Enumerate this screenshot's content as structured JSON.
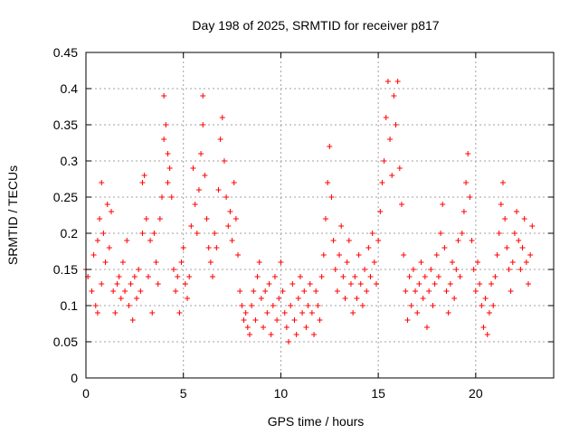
{
  "chart_data": {
    "type": "scatter",
    "title": "Day 198 of 2025, SRMTID for receiver p817",
    "xlabel": "GPS time / hours",
    "ylabel": "SRMTID / TECUs",
    "xlim": [
      0,
      24
    ],
    "ylim": [
      0,
      0.45
    ],
    "xticks": [
      0,
      5,
      10,
      15,
      20
    ],
    "yticks": [
      0,
      0.05,
      0.1,
      0.15,
      0.2,
      0.25,
      0.3,
      0.35,
      0.4,
      0.45
    ],
    "xtick_labels": [
      "0",
      "5",
      "10",
      "15",
      "20"
    ],
    "ytick_labels": [
      "0",
      "0.05",
      "0.1",
      "0.15",
      "0.2",
      "0.25",
      "0.3",
      "0.35",
      "0.4",
      "0.45"
    ],
    "grid": true,
    "marker": "+",
    "color": "#ff0000",
    "series": [
      {
        "name": "SRMTID",
        "points": [
          [
            0.0,
            0.15
          ],
          [
            0.1,
            0.14
          ],
          [
            0.3,
            0.12
          ],
          [
            0.4,
            0.17
          ],
          [
            0.5,
            0.1
          ],
          [
            0.6,
            0.19
          ],
          [
            0.6,
            0.09
          ],
          [
            0.7,
            0.22
          ],
          [
            0.8,
            0.27
          ],
          [
            0.8,
            0.13
          ],
          [
            0.9,
            0.2
          ],
          [
            1.0,
            0.16
          ],
          [
            1.1,
            0.24
          ],
          [
            1.2,
            0.18
          ],
          [
            1.3,
            0.23
          ],
          [
            1.4,
            0.12
          ],
          [
            1.5,
            0.09
          ],
          [
            1.6,
            0.13
          ],
          [
            1.7,
            0.14
          ],
          [
            1.8,
            0.11
          ],
          [
            1.9,
            0.16
          ],
          [
            2.0,
            0.12
          ],
          [
            2.1,
            0.19
          ],
          [
            2.2,
            0.1
          ],
          [
            2.3,
            0.13
          ],
          [
            2.4,
            0.08
          ],
          [
            2.5,
            0.14
          ],
          [
            2.6,
            0.11
          ],
          [
            2.7,
            0.15
          ],
          [
            2.8,
            0.12
          ],
          [
            2.9,
            0.2
          ],
          [
            2.9,
            0.27
          ],
          [
            3.0,
            0.28
          ],
          [
            3.1,
            0.22
          ],
          [
            3.2,
            0.14
          ],
          [
            3.3,
            0.19
          ],
          [
            3.4,
            0.09
          ],
          [
            3.5,
            0.2
          ],
          [
            3.6,
            0.16
          ],
          [
            3.7,
            0.13
          ],
          [
            3.8,
            0.22
          ],
          [
            3.9,
            0.25
          ],
          [
            4.0,
            0.33
          ],
          [
            4.0,
            0.39
          ],
          [
            4.1,
            0.35
          ],
          [
            4.2,
            0.27
          ],
          [
            4.2,
            0.31
          ],
          [
            4.3,
            0.29
          ],
          [
            4.4,
            0.25
          ],
          [
            4.5,
            0.15
          ],
          [
            4.6,
            0.12
          ],
          [
            4.7,
            0.14
          ],
          [
            4.8,
            0.09
          ],
          [
            4.9,
            0.16
          ],
          [
            5.0,
            0.18
          ],
          [
            5.1,
            0.13
          ],
          [
            5.2,
            0.11
          ],
          [
            5.3,
            0.14
          ],
          [
            5.4,
            0.21
          ],
          [
            5.5,
            0.29
          ],
          [
            5.6,
            0.24
          ],
          [
            5.7,
            0.2
          ],
          [
            5.8,
            0.26
          ],
          [
            5.9,
            0.31
          ],
          [
            6.0,
            0.35
          ],
          [
            6.0,
            0.39
          ],
          [
            6.1,
            0.28
          ],
          [
            6.2,
            0.22
          ],
          [
            6.3,
            0.18
          ],
          [
            6.4,
            0.16
          ],
          [
            6.5,
            0.14
          ],
          [
            6.6,
            0.2
          ],
          [
            6.7,
            0.18
          ],
          [
            6.8,
            0.26
          ],
          [
            6.9,
            0.33
          ],
          [
            7.0,
            0.36
          ],
          [
            7.1,
            0.3
          ],
          [
            7.2,
            0.25
          ],
          [
            7.3,
            0.21
          ],
          [
            7.4,
            0.23
          ],
          [
            7.5,
            0.19
          ],
          [
            7.6,
            0.27
          ],
          [
            7.7,
            0.22
          ],
          [
            7.8,
            0.17
          ],
          [
            7.9,
            0.12
          ],
          [
            8.0,
            0.1
          ],
          [
            8.1,
            0.08
          ],
          [
            8.2,
            0.09
          ],
          [
            8.3,
            0.07
          ],
          [
            8.4,
            0.06
          ],
          [
            8.5,
            0.1
          ],
          [
            8.6,
            0.12
          ],
          [
            8.7,
            0.08
          ],
          [
            8.8,
            0.14
          ],
          [
            8.9,
            0.16
          ],
          [
            9.0,
            0.11
          ],
          [
            9.1,
            0.07
          ],
          [
            9.2,
            0.12
          ],
          [
            9.3,
            0.09
          ],
          [
            9.4,
            0.13
          ],
          [
            9.5,
            0.06
          ],
          [
            9.6,
            0.1
          ],
          [
            9.7,
            0.14
          ],
          [
            9.8,
            0.08
          ],
          [
            9.9,
            0.11
          ],
          [
            10.0,
            0.16
          ],
          [
            10.1,
            0.12
          ],
          [
            10.2,
            0.09
          ],
          [
            10.3,
            0.07
          ],
          [
            10.4,
            0.05
          ],
          [
            10.5,
            0.1
          ],
          [
            10.6,
            0.13
          ],
          [
            10.7,
            0.08
          ],
          [
            10.8,
            0.06
          ],
          [
            10.9,
            0.11
          ],
          [
            11.0,
            0.14
          ],
          [
            11.1,
            0.09
          ],
          [
            11.2,
            0.12
          ],
          [
            11.3,
            0.07
          ],
          [
            11.4,
            0.1
          ],
          [
            11.5,
            0.13
          ],
          [
            11.6,
            0.09
          ],
          [
            11.7,
            0.06
          ],
          [
            11.8,
            0.12
          ],
          [
            11.9,
            0.1
          ],
          [
            12.0,
            0.08
          ],
          [
            12.1,
            0.14
          ],
          [
            12.2,
            0.17
          ],
          [
            12.3,
            0.22
          ],
          [
            12.4,
            0.27
          ],
          [
            12.5,
            0.32
          ],
          [
            12.6,
            0.25
          ],
          [
            12.7,
            0.19
          ],
          [
            12.8,
            0.15
          ],
          [
            12.9,
            0.12
          ],
          [
            13.0,
            0.17
          ],
          [
            13.1,
            0.21
          ],
          [
            13.2,
            0.14
          ],
          [
            13.3,
            0.11
          ],
          [
            13.4,
            0.16
          ],
          [
            13.5,
            0.19
          ],
          [
            13.6,
            0.13
          ],
          [
            13.7,
            0.09
          ],
          [
            13.8,
            0.14
          ],
          [
            13.9,
            0.11
          ],
          [
            14.0,
            0.17
          ],
          [
            14.1,
            0.13
          ],
          [
            14.2,
            0.1
          ],
          [
            14.3,
            0.15
          ],
          [
            14.4,
            0.12
          ],
          [
            14.5,
            0.18
          ],
          [
            14.6,
            0.14
          ],
          [
            14.7,
            0.2
          ],
          [
            14.8,
            0.16
          ],
          [
            14.9,
            0.13
          ],
          [
            15.0,
            0.19
          ],
          [
            15.1,
            0.23
          ],
          [
            15.2,
            0.27
          ],
          [
            15.3,
            0.3
          ],
          [
            15.4,
            0.36
          ],
          [
            15.5,
            0.41
          ],
          [
            15.6,
            0.33
          ],
          [
            15.7,
            0.28
          ],
          [
            15.8,
            0.39
          ],
          [
            15.9,
            0.35
          ],
          [
            16.0,
            0.41
          ],
          [
            16.1,
            0.29
          ],
          [
            16.2,
            0.24
          ],
          [
            16.3,
            0.17
          ],
          [
            16.4,
            0.12
          ],
          [
            16.5,
            0.08
          ],
          [
            16.6,
            0.14
          ],
          [
            16.7,
            0.1
          ],
          [
            16.8,
            0.15
          ],
          [
            16.9,
            0.12
          ],
          [
            17.0,
            0.09
          ],
          [
            17.1,
            0.13
          ],
          [
            17.2,
            0.16
          ],
          [
            17.3,
            0.11
          ],
          [
            17.4,
            0.14
          ],
          [
            17.5,
            0.07
          ],
          [
            17.6,
            0.12
          ],
          [
            17.7,
            0.15
          ],
          [
            17.8,
            0.1
          ],
          [
            17.9,
            0.13
          ],
          [
            18.0,
            0.17
          ],
          [
            18.1,
            0.14
          ],
          [
            18.2,
            0.2
          ],
          [
            18.3,
            0.24
          ],
          [
            18.4,
            0.18
          ],
          [
            18.5,
            0.12
          ],
          [
            18.6,
            0.09
          ],
          [
            18.7,
            0.13
          ],
          [
            18.8,
            0.16
          ],
          [
            18.9,
            0.11
          ],
          [
            19.0,
            0.15
          ],
          [
            19.1,
            0.19
          ],
          [
            19.2,
            0.14
          ],
          [
            19.3,
            0.2
          ],
          [
            19.4,
            0.23
          ],
          [
            19.5,
            0.27
          ],
          [
            19.6,
            0.31
          ],
          [
            19.7,
            0.25
          ],
          [
            19.8,
            0.19
          ],
          [
            19.9,
            0.15
          ],
          [
            20.0,
            0.12
          ],
          [
            20.1,
            0.16
          ],
          [
            20.2,
            0.13
          ],
          [
            20.3,
            0.1
          ],
          [
            20.4,
            0.07
          ],
          [
            20.5,
            0.11
          ],
          [
            20.6,
            0.06
          ],
          [
            20.7,
            0.09
          ],
          [
            20.8,
            0.13
          ],
          [
            20.9,
            0.1
          ],
          [
            21.0,
            0.14
          ],
          [
            21.1,
            0.17
          ],
          [
            21.2,
            0.2
          ],
          [
            21.3,
            0.24
          ],
          [
            21.4,
            0.27
          ],
          [
            21.5,
            0.22
          ],
          [
            21.6,
            0.18
          ],
          [
            21.7,
            0.15
          ],
          [
            21.8,
            0.12
          ],
          [
            21.9,
            0.16
          ],
          [
            22.0,
            0.2
          ],
          [
            22.1,
            0.23
          ],
          [
            22.2,
            0.19
          ],
          [
            22.3,
            0.15
          ],
          [
            22.4,
            0.18
          ],
          [
            22.5,
            0.22
          ],
          [
            22.6,
            0.16
          ],
          [
            22.7,
            0.13
          ],
          [
            22.8,
            0.17
          ],
          [
            22.9,
            0.21
          ]
        ]
      }
    ]
  }
}
